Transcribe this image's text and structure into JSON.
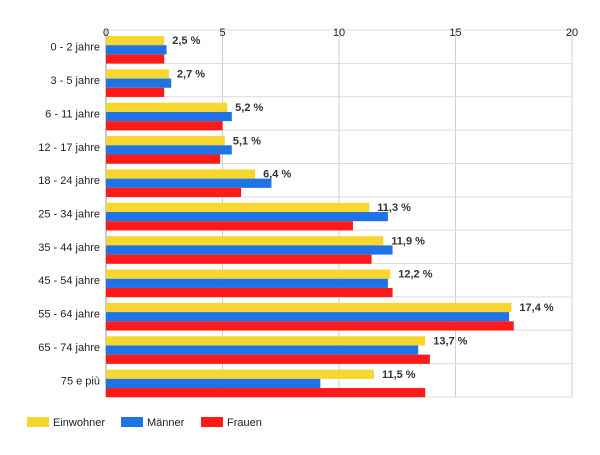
{
  "chart_data": {
    "type": "bar",
    "orientation": "horizontal",
    "categories": [
      "0 - 2 jahre",
      "3 - 5 jahre",
      "6 - 11 jahre",
      "12 - 17 jahre",
      "18 - 24 jahre",
      "25 - 34 jahre",
      "35 - 44 jahre",
      "45 - 54 jahre",
      "55 - 64 jahre",
      "65 - 74 jahre",
      "75 e più"
    ],
    "series": [
      {
        "name": "Einwohner",
        "color": "#f7d630",
        "values": [
          2.5,
          2.7,
          5.2,
          5.1,
          6.4,
          11.3,
          11.9,
          12.2,
          17.4,
          13.7,
          11.5
        ]
      },
      {
        "name": "Männer",
        "color": "#1e74e6",
        "values": [
          2.6,
          2.8,
          5.4,
          5.4,
          7.1,
          12.1,
          12.3,
          12.1,
          17.3,
          13.4,
          9.2
        ]
      },
      {
        "name": "Frauen",
        "color": "#ff1a1a",
        "values": [
          2.5,
          2.5,
          5.0,
          4.9,
          5.8,
          10.6,
          11.4,
          12.3,
          17.5,
          13.9,
          13.7
        ]
      }
    ],
    "data_labels": [
      "2,5 %",
      "2,7 %",
      "5,2 %",
      "5,1 %",
      "6,4 %",
      "11,3 %",
      "11,9 %",
      "12,2 %",
      "17,4 %",
      "13,7 %",
      "11,5 %"
    ],
    "data_label_series": 0,
    "x_ticks": [
      "0",
      "5",
      "10",
      "15",
      "20"
    ],
    "xlim": [
      0,
      20
    ],
    "title": "",
    "xlabel": "",
    "ylabel": "",
    "grid": true,
    "legend_position": "bottom-left"
  }
}
